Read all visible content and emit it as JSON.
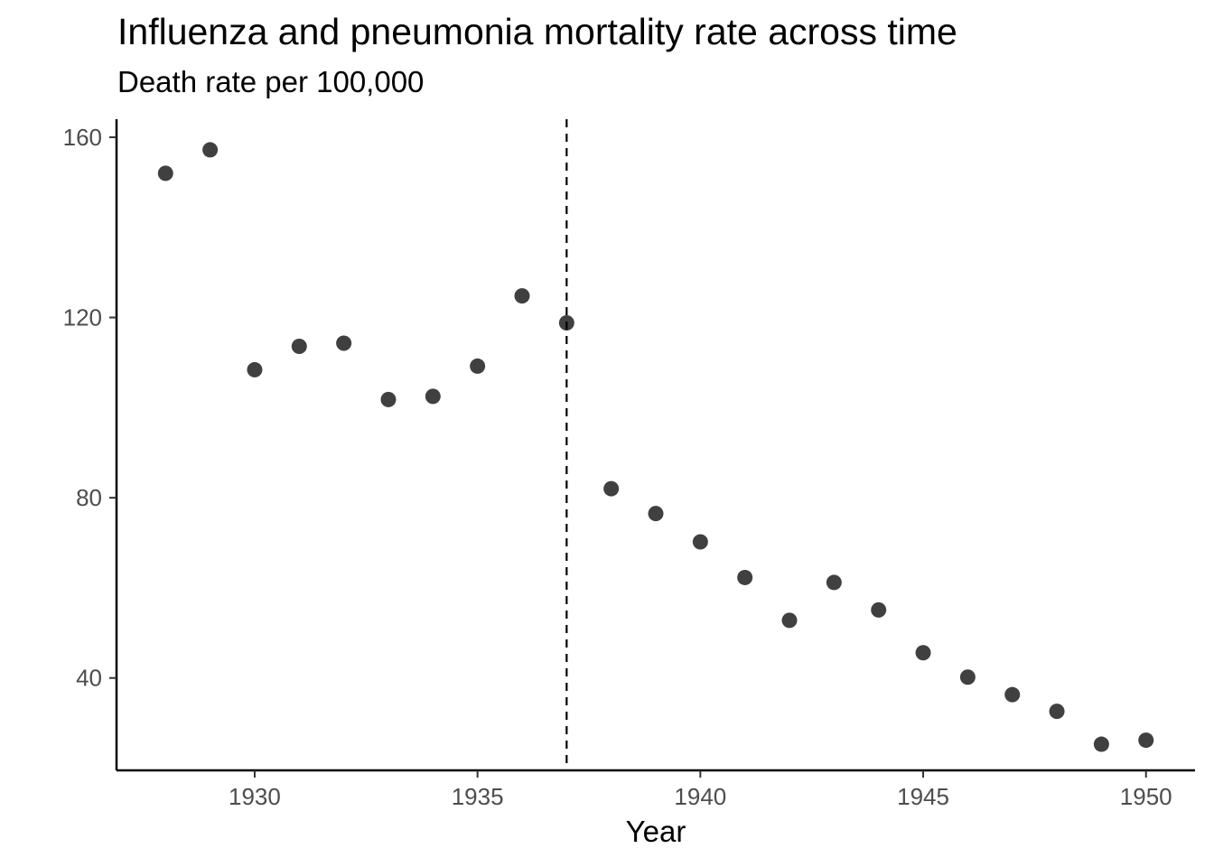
{
  "chart_data": {
    "type": "scatter",
    "title": "Influenza and pneumonia mortality rate across time",
    "subtitle": "Death rate per 100,000",
    "xlabel": "Year",
    "ylabel": "",
    "x": [
      1928,
      1929,
      1930,
      1931,
      1932,
      1933,
      1934,
      1935,
      1936,
      1937,
      1938,
      1939,
      1940,
      1941,
      1942,
      1943,
      1944,
      1945,
      1946,
      1947,
      1948,
      1949,
      1950
    ],
    "y": [
      152.0,
      157.2,
      108.4,
      113.6,
      114.3,
      101.8,
      102.5,
      109.2,
      124.8,
      118.8,
      82.0,
      76.5,
      70.2,
      62.3,
      52.8,
      61.2,
      55.1,
      45.6,
      40.2,
      36.3,
      32.6,
      25.3,
      26.2
    ],
    "xlim": [
      1926.9,
      1951.1
    ],
    "ylim": [
      19.5,
      164.0
    ],
    "xticks": [
      1930,
      1935,
      1940,
      1945,
      1950
    ],
    "yticks": [
      40,
      80,
      120,
      160
    ],
    "vline_x": 1937,
    "vline_style": "dashed",
    "point_color": "#404040",
    "grid": false,
    "legend": "none"
  }
}
